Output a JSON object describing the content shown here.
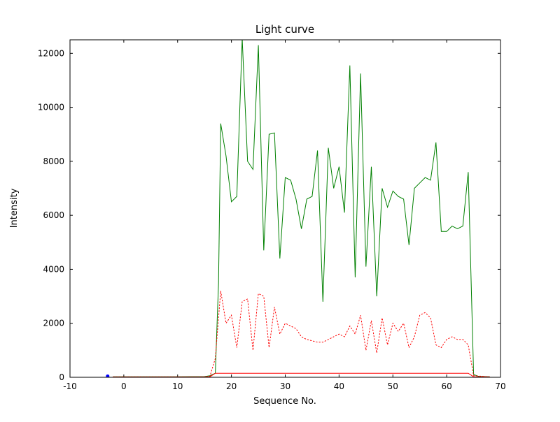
{
  "chart_data": {
    "type": "line",
    "title": "Light curve",
    "xlabel": "Sequence No.",
    "ylabel": "Intensity",
    "xlim": [
      -10,
      70
    ],
    "ylim": [
      0,
      12500
    ],
    "x_ticks": [
      -10,
      0,
      10,
      20,
      30,
      40,
      50,
      60,
      70
    ],
    "y_ticks": [
      0,
      2000,
      4000,
      6000,
      8000,
      10000,
      12000
    ],
    "grid": false,
    "legend": "none",
    "series": [
      {
        "name": "intensity-green",
        "color": "#008000",
        "style": "solid",
        "type": "line",
        "points": [
          [
            -2,
            20
          ],
          [
            0,
            20
          ],
          [
            5,
            20
          ],
          [
            10,
            20
          ],
          [
            15,
            25
          ],
          [
            16,
            60
          ],
          [
            17,
            150
          ],
          [
            17.6,
            3500
          ],
          [
            18,
            9400
          ],
          [
            19,
            8200
          ],
          [
            20,
            6500
          ],
          [
            21,
            6700
          ],
          [
            22,
            12550
          ],
          [
            23,
            8000
          ],
          [
            24,
            7700
          ],
          [
            25,
            12300
          ],
          [
            26,
            4700
          ],
          [
            27,
            9000
          ],
          [
            28,
            9050
          ],
          [
            29,
            4400
          ],
          [
            30,
            7400
          ],
          [
            31,
            7300
          ],
          [
            32,
            6600
          ],
          [
            33,
            5500
          ],
          [
            34,
            6600
          ],
          [
            35,
            6700
          ],
          [
            36,
            8400
          ],
          [
            37,
            2800
          ],
          [
            38,
            8500
          ],
          [
            39,
            7000
          ],
          [
            40,
            7800
          ],
          [
            41,
            6100
          ],
          [
            42,
            11550
          ],
          [
            43,
            3700
          ],
          [
            44,
            11250
          ],
          [
            45,
            4100
          ],
          [
            46,
            7800
          ],
          [
            47,
            3000
          ],
          [
            48,
            7000
          ],
          [
            49,
            6300
          ],
          [
            50,
            6900
          ],
          [
            51,
            6700
          ],
          [
            52,
            6600
          ],
          [
            53,
            4900
          ],
          [
            54,
            7000
          ],
          [
            55,
            7200
          ],
          [
            56,
            7400
          ],
          [
            57,
            7300
          ],
          [
            58,
            8700
          ],
          [
            59,
            5400
          ],
          [
            60,
            5400
          ],
          [
            61,
            5600
          ],
          [
            62,
            5500
          ],
          [
            63,
            5600
          ],
          [
            64,
            7600
          ],
          [
            65,
            100
          ],
          [
            66,
            30
          ],
          [
            68,
            20
          ]
        ]
      },
      {
        "name": "background-red-dotted",
        "color": "#ff0000",
        "style": "dotted",
        "type": "line",
        "points": [
          [
            -2,
            15
          ],
          [
            5,
            15
          ],
          [
            10,
            15
          ],
          [
            15,
            18
          ],
          [
            16,
            40
          ],
          [
            17,
            700
          ],
          [
            18,
            3200
          ],
          [
            19,
            2000
          ],
          [
            20,
            2300
          ],
          [
            21,
            1100
          ],
          [
            22,
            2800
          ],
          [
            23,
            2900
          ],
          [
            24,
            1000
          ],
          [
            25,
            3100
          ],
          [
            26,
            3000
          ],
          [
            27,
            1100
          ],
          [
            28,
            2600
          ],
          [
            29,
            1600
          ],
          [
            30,
            2000
          ],
          [
            31,
            1900
          ],
          [
            32,
            1800
          ],
          [
            33,
            1500
          ],
          [
            34,
            1400
          ],
          [
            35,
            1350
          ],
          [
            36,
            1300
          ],
          [
            37,
            1300
          ],
          [
            38,
            1400
          ],
          [
            39,
            1500
          ],
          [
            40,
            1600
          ],
          [
            41,
            1500
          ],
          [
            42,
            1900
          ],
          [
            43,
            1600
          ],
          [
            44,
            2300
          ],
          [
            45,
            1000
          ],
          [
            46,
            2100
          ],
          [
            47,
            900
          ],
          [
            48,
            2200
          ],
          [
            49,
            1200
          ],
          [
            50,
            2000
          ],
          [
            51,
            1700
          ],
          [
            52,
            2000
          ],
          [
            53,
            1100
          ],
          [
            54,
            1500
          ],
          [
            55,
            2300
          ],
          [
            56,
            2400
          ],
          [
            57,
            2200
          ],
          [
            58,
            1200
          ],
          [
            59,
            1100
          ],
          [
            60,
            1400
          ],
          [
            61,
            1500
          ],
          [
            62,
            1400
          ],
          [
            63,
            1400
          ],
          [
            64,
            1200
          ],
          [
            65,
            60
          ],
          [
            68,
            15
          ]
        ]
      },
      {
        "name": "baseline-red-solid",
        "color": "#ff0000",
        "style": "solid",
        "type": "line",
        "points": [
          [
            -2,
            10
          ],
          [
            15,
            10
          ],
          [
            16,
            20
          ],
          [
            17,
            150
          ],
          [
            30,
            150
          ],
          [
            45,
            150
          ],
          [
            64,
            150
          ],
          [
            65,
            20
          ],
          [
            68,
            10
          ]
        ]
      },
      {
        "name": "start-marker-blue",
        "color": "#0000ff",
        "style": "solid",
        "type": "point",
        "points": [
          [
            -3,
            40
          ]
        ]
      }
    ]
  }
}
